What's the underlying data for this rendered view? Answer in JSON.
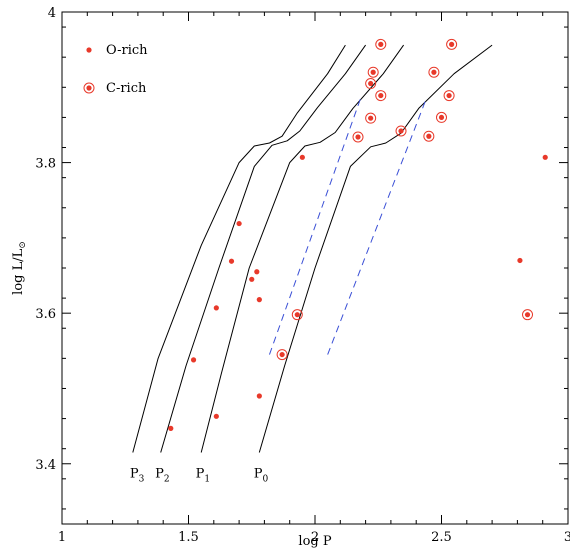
{
  "colors": {
    "marker": "#e8392a",
    "curve": "#000000",
    "dashed": "#3a4fd6",
    "frame": "#000000"
  },
  "chart_data": {
    "type": "scatter",
    "xlabel": "log P",
    "ylabel_main": "log L/L",
    "ylabel_sub": "⊙",
    "xlim": [
      1.0,
      3.0
    ],
    "ylim": [
      3.32,
      4.0
    ],
    "xticks": [
      1,
      1.5,
      2,
      2.5,
      3
    ],
    "xtick_labels": [
      "1",
      "1.5",
      "2",
      "2.5",
      "3"
    ],
    "yticks": [
      3.4,
      3.6,
      3.8,
      4.0
    ],
    "ytick_labels": [
      "3.4",
      "3.6",
      "3.8",
      "4"
    ],
    "legend": {
      "placement": "top-left",
      "entries": [
        {
          "label": "O-rich",
          "marker": "dot"
        },
        {
          "label": "C-rich",
          "marker": "ringed-dot"
        }
      ]
    },
    "series": [
      {
        "name": "O-rich",
        "marker": "dot",
        "points": [
          [
            1.43,
            3.447
          ],
          [
            1.52,
            3.538
          ],
          [
            1.61,
            3.463
          ],
          [
            1.61,
            3.607
          ],
          [
            1.67,
            3.669
          ],
          [
            1.7,
            3.719
          ],
          [
            1.75,
            3.645
          ],
          [
            1.77,
            3.655
          ],
          [
            1.78,
            3.618
          ],
          [
            1.78,
            3.49
          ],
          [
            1.95,
            3.807
          ],
          [
            2.81,
            3.67
          ],
          [
            2.91,
            3.807
          ]
        ]
      },
      {
        "name": "C-rich",
        "marker": "ringed-dot",
        "points": [
          [
            1.87,
            3.545
          ],
          [
            1.93,
            3.598
          ],
          [
            2.17,
            3.834
          ],
          [
            2.22,
            3.859
          ],
          [
            2.22,
            3.905
          ],
          [
            2.23,
            3.92
          ],
          [
            2.26,
            3.957
          ],
          [
            2.26,
            3.889
          ],
          [
            2.34,
            3.842
          ],
          [
            2.45,
            3.835
          ],
          [
            2.47,
            3.92
          ],
          [
            2.5,
            3.86
          ],
          [
            2.53,
            3.889
          ],
          [
            2.54,
            3.957
          ],
          [
            2.84,
            3.598
          ]
        ]
      }
    ],
    "curves": [
      {
        "label_main": "P",
        "label_sub": "3",
        "label_at": [
          1.28,
          3.39
        ],
        "points": [
          [
            1.28,
            3.415
          ],
          [
            1.38,
            3.54
          ],
          [
            1.55,
            3.69
          ],
          [
            1.7,
            3.8
          ],
          [
            1.76,
            3.822
          ],
          [
            1.82,
            3.826
          ],
          [
            1.87,
            3.835
          ],
          [
            1.93,
            3.866
          ],
          [
            2.05,
            3.918
          ],
          [
            2.12,
            3.956
          ]
        ]
      },
      {
        "label_main": "P",
        "label_sub": "2",
        "label_at": [
          1.38,
          3.39
        ],
        "points": [
          [
            1.39,
            3.415
          ],
          [
            1.49,
            3.53
          ],
          [
            1.62,
            3.66
          ],
          [
            1.76,
            3.795
          ],
          [
            1.83,
            3.823
          ],
          [
            1.89,
            3.829
          ],
          [
            1.94,
            3.842
          ],
          [
            2.01,
            3.873
          ],
          [
            2.12,
            3.918
          ],
          [
            2.2,
            3.956
          ]
        ]
      },
      {
        "label_main": "P",
        "label_sub": "1",
        "label_at": [
          1.54,
          3.39
        ],
        "points": [
          [
            1.55,
            3.415
          ],
          [
            1.63,
            3.52
          ],
          [
            1.74,
            3.66
          ],
          [
            1.9,
            3.8
          ],
          [
            1.96,
            3.822
          ],
          [
            2.02,
            3.827
          ],
          [
            2.08,
            3.84
          ],
          [
            2.15,
            3.872
          ],
          [
            2.27,
            3.918
          ],
          [
            2.35,
            3.956
          ]
        ]
      },
      {
        "label_main": "P",
        "label_sub": "0",
        "label_at": [
          1.77,
          3.39
        ],
        "points": [
          [
            1.78,
            3.415
          ],
          [
            1.88,
            3.53
          ],
          [
            2.0,
            3.66
          ],
          [
            2.14,
            3.795
          ],
          [
            2.22,
            3.821
          ],
          [
            2.28,
            3.826
          ],
          [
            2.34,
            3.839
          ],
          [
            2.41,
            3.872
          ],
          [
            2.55,
            3.918
          ],
          [
            2.7,
            3.956
          ]
        ]
      }
    ],
    "dashed_lines": [
      {
        "points": [
          [
            1.82,
            3.545
          ],
          [
            2.18,
            3.885
          ]
        ]
      },
      {
        "points": [
          [
            2.05,
            3.545
          ],
          [
            2.44,
            3.885
          ]
        ]
      }
    ]
  }
}
